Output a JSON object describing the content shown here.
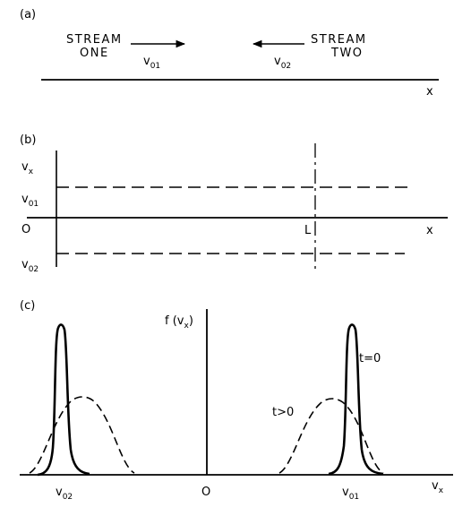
{
  "panel_a": {
    "label": "(a)",
    "stream_one": {
      "line1": "STREAM",
      "line2": "ONE",
      "velocity": "v",
      "velocity_sub": "01"
    },
    "stream_two": {
      "line1": "STREAM",
      "line2": "TWO",
      "velocity": "v",
      "velocity_sub": "02"
    },
    "x_axis_label": "x"
  },
  "panel_b": {
    "label": "(b)",
    "y_axis_label": "v",
    "y_axis_sub": "x",
    "upper_level_label": "v",
    "upper_level_sub": "01",
    "origin_label": "O",
    "lower_level_label": "v",
    "lower_level_sub": "02",
    "boundary_label": "L",
    "x_axis_label": "x"
  },
  "panel_c": {
    "label": "(c)",
    "y_axis_label": "f (v",
    "y_axis_sub": "x",
    "y_axis_close": ")",
    "curve_initial_label": "t=0",
    "curve_later_label": "t>0",
    "tick_left": "v",
    "tick_left_sub": "02",
    "tick_mid": "O",
    "tick_right": "v",
    "tick_right_sub": "01",
    "x_axis_label": "v",
    "x_axis_sub": "x"
  },
  "colors": {
    "ink": "#000000",
    "paper": "#ffffff"
  }
}
